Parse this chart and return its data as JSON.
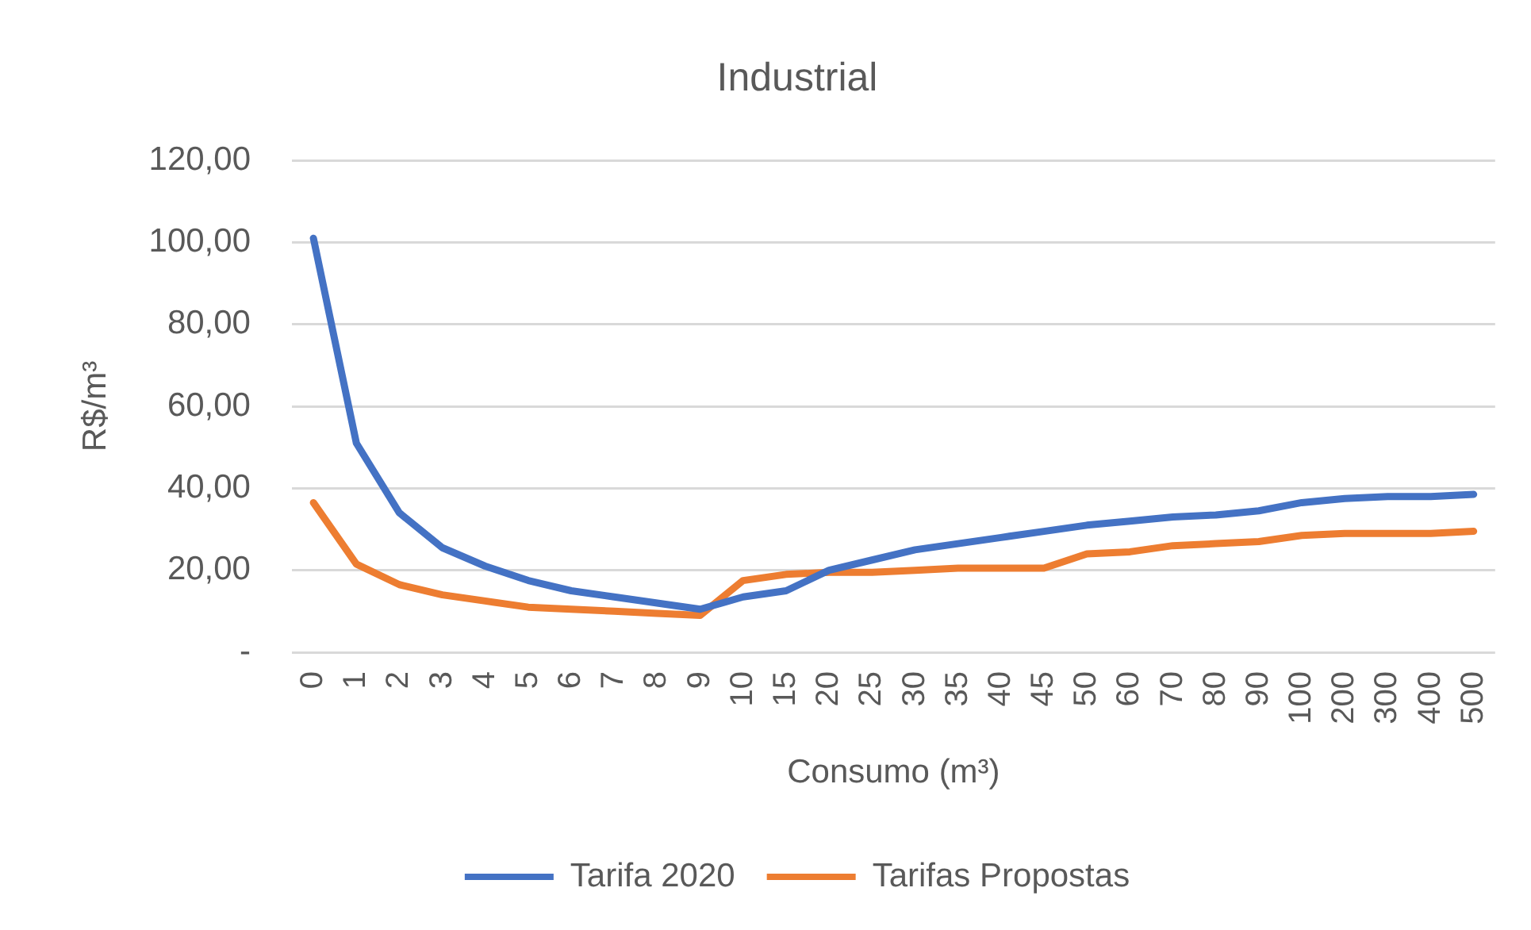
{
  "chart_data": {
    "type": "line",
    "title": "Industrial",
    "xlabel": "Consumo (m³)",
    "ylabel": "R$/m³",
    "categories": [
      "0",
      "1",
      "2",
      "3",
      "4",
      "5",
      "6",
      "7",
      "8",
      "9",
      "10",
      "15",
      "20",
      "25",
      "30",
      "35",
      "40",
      "45",
      "50",
      "60",
      "70",
      "80",
      "90",
      "100",
      "200",
      "300",
      "400",
      "500"
    ],
    "series": [
      {
        "name": "Tarifa 2020",
        "color": "#4472c4",
        "values": [
          101,
          51,
          34,
          25.5,
          21,
          17.5,
          15,
          13.5,
          12,
          10.5,
          13.5,
          15,
          20,
          22.5,
          25,
          26.5,
          28,
          29.5,
          31,
          32,
          33,
          33.5,
          34.5,
          36.5,
          37.5,
          38,
          38,
          38.5
        ]
      },
      {
        "name": "Tarifas Propostas",
        "color": "#ed7d31",
        "values": [
          36.5,
          21.5,
          16.5,
          14,
          12.5,
          11,
          10.5,
          10,
          9.5,
          9,
          17.5,
          19,
          19.5,
          19.5,
          20,
          20.5,
          20.5,
          20.5,
          24,
          24.5,
          26,
          26.5,
          27,
          28.5,
          29,
          29,
          29,
          29.5
        ]
      }
    ],
    "ylim": [
      0,
      120
    ],
    "yticks": [
      {
        "value": 0,
        "label": "-"
      },
      {
        "value": 20,
        "label": "20,00"
      },
      {
        "value": 40,
        "label": "40,00"
      },
      {
        "value": 60,
        "label": "60,00"
      },
      {
        "value": 80,
        "label": "80,00"
      },
      {
        "value": 100,
        "label": "100,00"
      },
      {
        "value": 120,
        "label": "120,00"
      }
    ],
    "grid": "y",
    "legend": "bottom"
  }
}
